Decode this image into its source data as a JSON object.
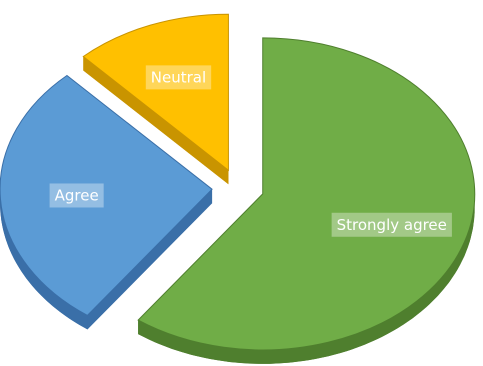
{
  "chart_data": {
    "type": "pie",
    "title": "",
    "style": "3d-exploded",
    "legend": "none",
    "slices": [
      {
        "label": "Strongly agree",
        "value": 60,
        "color": "#70ad47",
        "side_color": "#4f7f2e",
        "exploded": true
      },
      {
        "label": "Agree",
        "value": 28,
        "color": "#5b9bd5",
        "side_color": "#3a6fa8",
        "exploded": true
      },
      {
        "label": "Neutral",
        "value": 12,
        "color": "#ffc000",
        "side_color": "#c99400",
        "exploded": true
      }
    ]
  }
}
